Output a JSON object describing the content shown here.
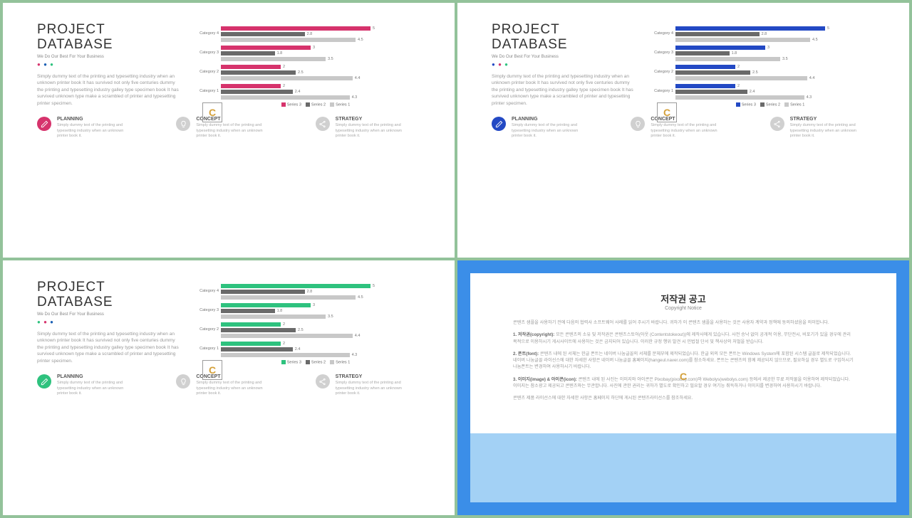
{
  "title_line1": "PROJECT",
  "title_line2": "DATABASE",
  "subtitle": "We Do Our Best For Your Business",
  "body": "Simply dummy text of the printing and typesetting industry when an unknown printer book It has survived not only five centuries dummy the printing and typesetting industry galley type specimen book It has survived unknown type make a scrambled of printer and typesetting printer specimen.",
  "variants": [
    {
      "accent": "#d6336c",
      "dot2": "#1a5fb4",
      "dot3": "#2ec27e"
    },
    {
      "accent": "#2349c4",
      "dot2": "#d6336c",
      "dot3": "#2ec27e"
    },
    {
      "accent": "#2ec27e",
      "dot2": "#d6336c",
      "dot3": "#1a5fb4"
    }
  ],
  "chart": {
    "series2_color": "#6a6a6a",
    "series1_color": "#c8c8c8",
    "scale": 42,
    "categories": [
      {
        "label": "Category 4",
        "s3": 5,
        "s2": 2.8,
        "s1": 4.5
      },
      {
        "label": "Category 3",
        "s3": 3,
        "s2": 1.8,
        "s1": 3.5
      },
      {
        "label": "Category 2",
        "s3": 2,
        "s2": 2.5,
        "s1": 4.4
      },
      {
        "label": "Category 1",
        "s3": 2,
        "s2": 2.4,
        "s1": 4.3
      }
    ],
    "legend": [
      "Series 3",
      "Series 2",
      "Series 1"
    ]
  },
  "features": [
    {
      "title": "PLANNING",
      "icon": "pencil"
    },
    {
      "title": "CONCEPT",
      "icon": "bulb"
    },
    {
      "title": "STRATEGY",
      "icon": "share"
    }
  ],
  "feature_text": "Simply dummy text of the printing and typesetting industry when an unknown printer book it.",
  "neutral_icon_bg": "#d0d0d0",
  "slide4": {
    "title": "저작권 공고",
    "subtitle": "Copyright Notice",
    "p1": "콘텐츠 샘플을 사용하기 전에 다음의 협력사 소프트웨어 사례를 읽어 주시기 바랍니다. 귀하가 이 콘텐츠 샘플을 사용하는 것은 사용자 계약과 정책에 동의하셨음을 의미합니다.",
    "p2_label": "1. 저작권(copyright):",
    "p2": "모든 콘텐츠의 소유 및 저작권은 콘텐츠스토어(아웃 (Contentstokeout))에 제작사에게 있습니다. 사전 승낙 없이 공개적 이용, 무단전시, 비포기가 있을 경우에 관리 목적으로 이용하시기 게시사이트에 사용하는 것은 금지되어 있습니다. 이러한 규정 행위 발견 시 민법절 단서 및 책사상의 처벌을 받습니다.",
    "p3_label": "2. 폰트(font):",
    "p3": "콘텐츠 내에 된 서체는 한글 폰트는 네이버 나눔글꼴의 서체를 문체부에 제작되었습니다. 한글 외의 모든 폰트는 Windows System에 포함된 시스템 글꼴로 제작되었습니다. 네이버 나눔글꼴 라이선스에 대한 자세한 사항은 네이버 나눔글꼴 홈페이지(hangeul.naver.com)를 참소하세요. 폰트는 콘텐츠의 함께 제공되지 않으므로, 필요하실 경우 별도로 구입하시기 나눔폰트는 변경하여 사용하시기 바랍니다.",
    "p4_label": "3. 이미지(image) & 아이콘(icon):",
    "p4": "콘텐츠 내에 된 사진는 이미지와 아이콘은 Pixobay(pixobay.com)와 Webolys(webolys.com) 등에서 제공한 무료 저작물을 이용하여 제작되었습니다. 이미지는 참소광고 제공되고 콘텐츠와는 무관합니다. 사진에 관한 권리는 귀하가 별도로 확인하고 필요할 경우 여기능 취득하거나 이미지를 변경하여 사용하시기 바랍니다.",
    "p5": "콘텐츠 제품 라이선스에 대한 자세한 사항은 홈페이지 하단에 게시된 콘텐츠라이선스를 참조하세요."
  }
}
